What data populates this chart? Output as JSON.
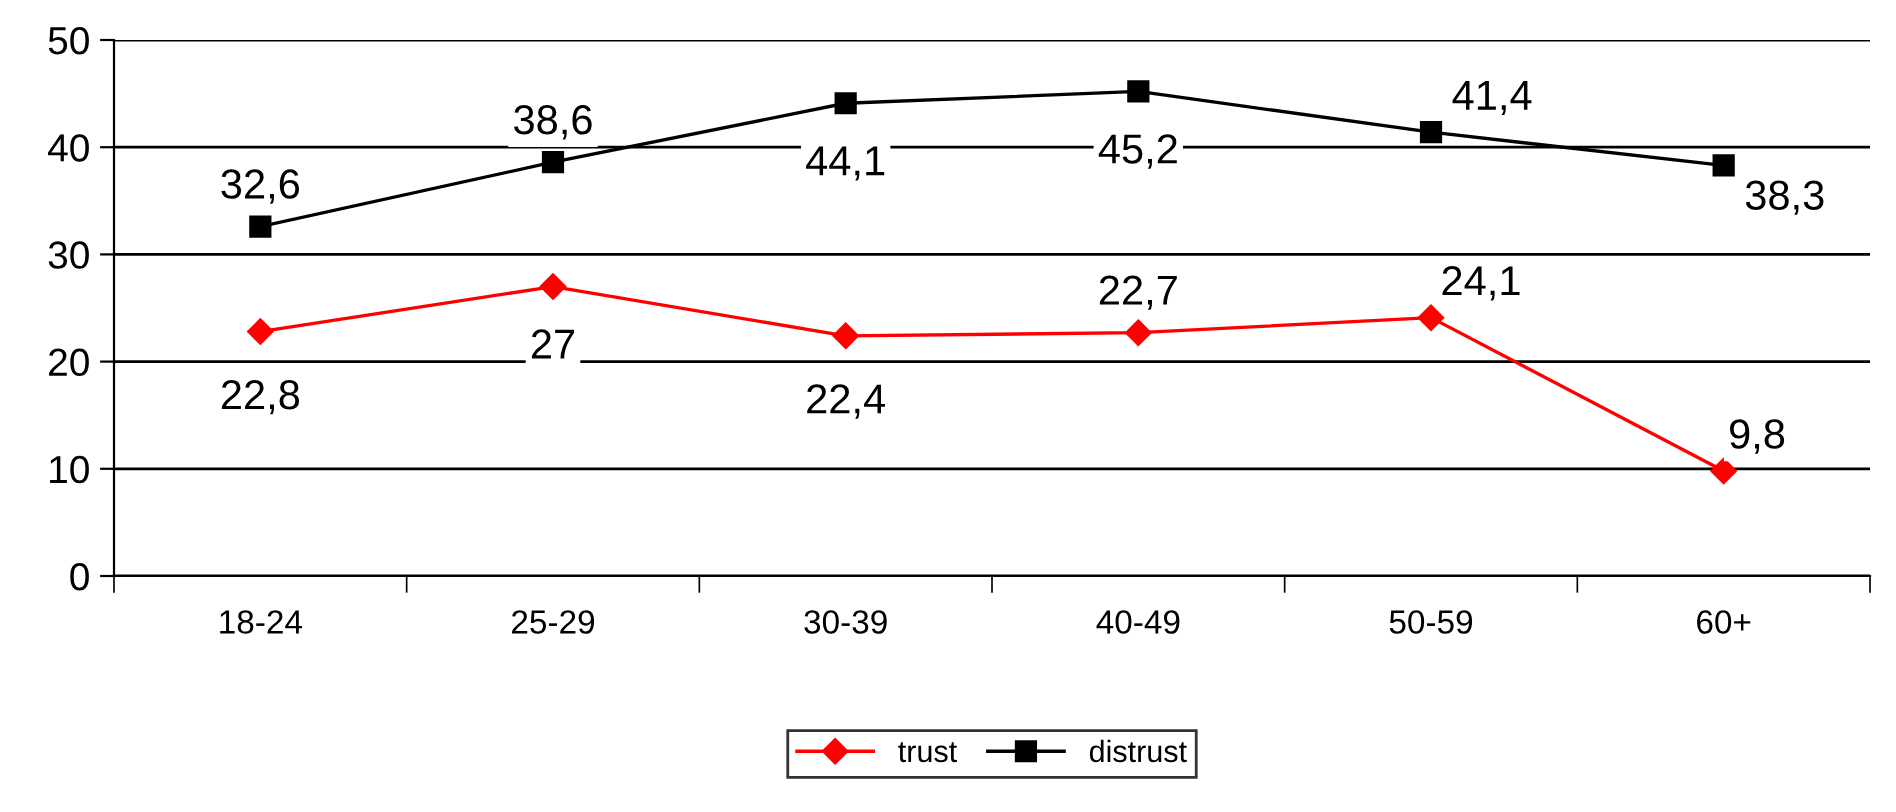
{
  "chart_data": {
    "type": "line",
    "categories": [
      "18-24",
      "25-29",
      "30-39",
      "40-49",
      "50-59",
      "60+"
    ],
    "series": [
      {
        "name": "trust",
        "color": "#ff0000",
        "marker": "diamond",
        "values": [
          22.8,
          27,
          22.4,
          22.7,
          24.1,
          9.8
        ],
        "value_labels": [
          "22,8",
          "27",
          "22,4",
          "22,7",
          "24,1",
          "9,8"
        ]
      },
      {
        "name": "distrust",
        "color": "#000000",
        "marker": "square",
        "values": [
          32.6,
          38.6,
          44.1,
          45.2,
          41.4,
          38.3
        ],
        "value_labels": [
          "32,6",
          "38,6",
          "44,1",
          "45,2",
          "41,4",
          "38,3"
        ]
      }
    ],
    "ylim": [
      0,
      50
    ],
    "yticks": [
      0,
      10,
      20,
      30,
      40,
      50
    ],
    "grid": "y",
    "legend": "bottom",
    "line_style": "solid"
  }
}
